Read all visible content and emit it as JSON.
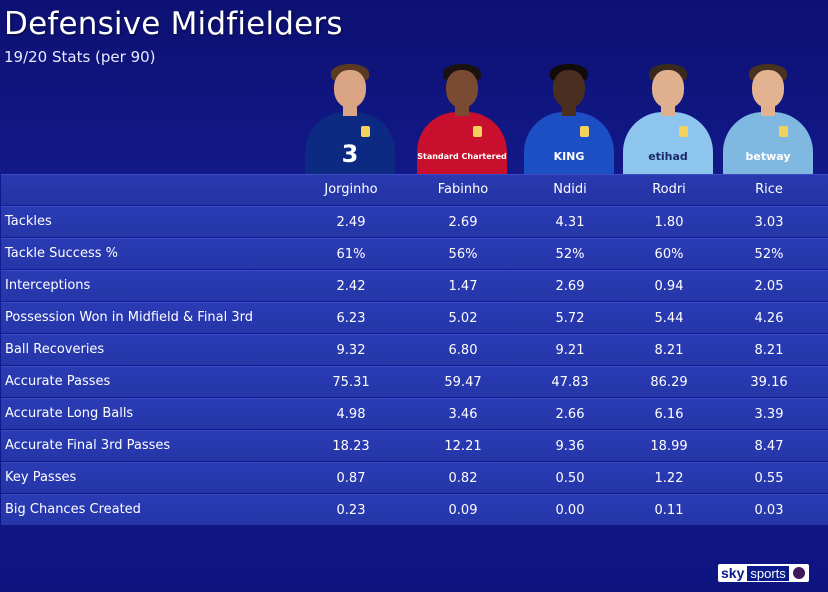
{
  "header": {
    "title": "Defensive Midfielders",
    "subtitle": "19/20 Stats (per 90)"
  },
  "players": [
    {
      "name": "Jorginho",
      "shirt_color": "#0d2a82",
      "sponsor": "3",
      "skin": "#d9a585",
      "hair": "#5a3a22"
    },
    {
      "name": "Fabinho",
      "shirt_color": "#c8102e",
      "sponsor": "Standard Chartered",
      "skin": "#7a4a32",
      "hair": "#1a1210"
    },
    {
      "name": "Ndidi",
      "shirt_color": "#1d4fc4",
      "sponsor": "KING",
      "skin": "#4a2e20",
      "hair": "#120c08"
    },
    {
      "name": "Rodri",
      "shirt_color": "#8ec5ee",
      "sponsor": "etihad",
      "skin": "#e0b08e",
      "hair": "#3a2a1e"
    },
    {
      "name": "Rice",
      "shirt_color": "#7fb8e0",
      "sponsor": "betway",
      "skin": "#e3b391",
      "hair": "#4a3220"
    }
  ],
  "chart_data": {
    "type": "table",
    "title": "Defensive Midfielders",
    "subtitle": "19/20 Stats (per 90)",
    "columns": [
      "Jorginho",
      "Fabinho",
      "Ndidi",
      "Rodri",
      "Rice"
    ],
    "rows": [
      {
        "label": "Tackles",
        "values": [
          "2.49",
          "2.69",
          "4.31",
          "1.80",
          "3.03"
        ]
      },
      {
        "label": "Tackle Success %",
        "values": [
          "61%",
          "56%",
          "52%",
          "60%",
          "52%"
        ]
      },
      {
        "label": "Interceptions",
        "values": [
          "2.42",
          "1.47",
          "2.69",
          "0.94",
          "2.05"
        ]
      },
      {
        "label": "Possession Won in Midfield & Final 3rd",
        "values": [
          "6.23",
          "5.02",
          "5.72",
          "5.44",
          "4.26"
        ]
      },
      {
        "label": "Ball Recoveries",
        "values": [
          "9.32",
          "6.80",
          "9.21",
          "8.21",
          "8.21"
        ]
      },
      {
        "label": "Accurate Passes",
        "values": [
          "75.31",
          "59.47",
          "47.83",
          "86.29",
          "39.16"
        ]
      },
      {
        "label": "Accurate Long Balls",
        "values": [
          "4.98",
          "3.46",
          "2.66",
          "6.16",
          "3.39"
        ]
      },
      {
        "label": "Accurate Final 3rd Passes",
        "values": [
          "18.23",
          "12.21",
          "9.36",
          "18.99",
          "8.47"
        ]
      },
      {
        "label": "Key Passes",
        "values": [
          "0.87",
          "0.82",
          "0.50",
          "1.22",
          "0.55"
        ]
      },
      {
        "label": "Big Chances Created",
        "values": [
          "0.23",
          "0.09",
          "0.00",
          "0.11",
          "0.03"
        ]
      }
    ]
  },
  "logo": {
    "sky": "sky",
    "sports": "sports"
  },
  "colors": {
    "background": "#141c93",
    "row": "#2b3bb5"
  }
}
